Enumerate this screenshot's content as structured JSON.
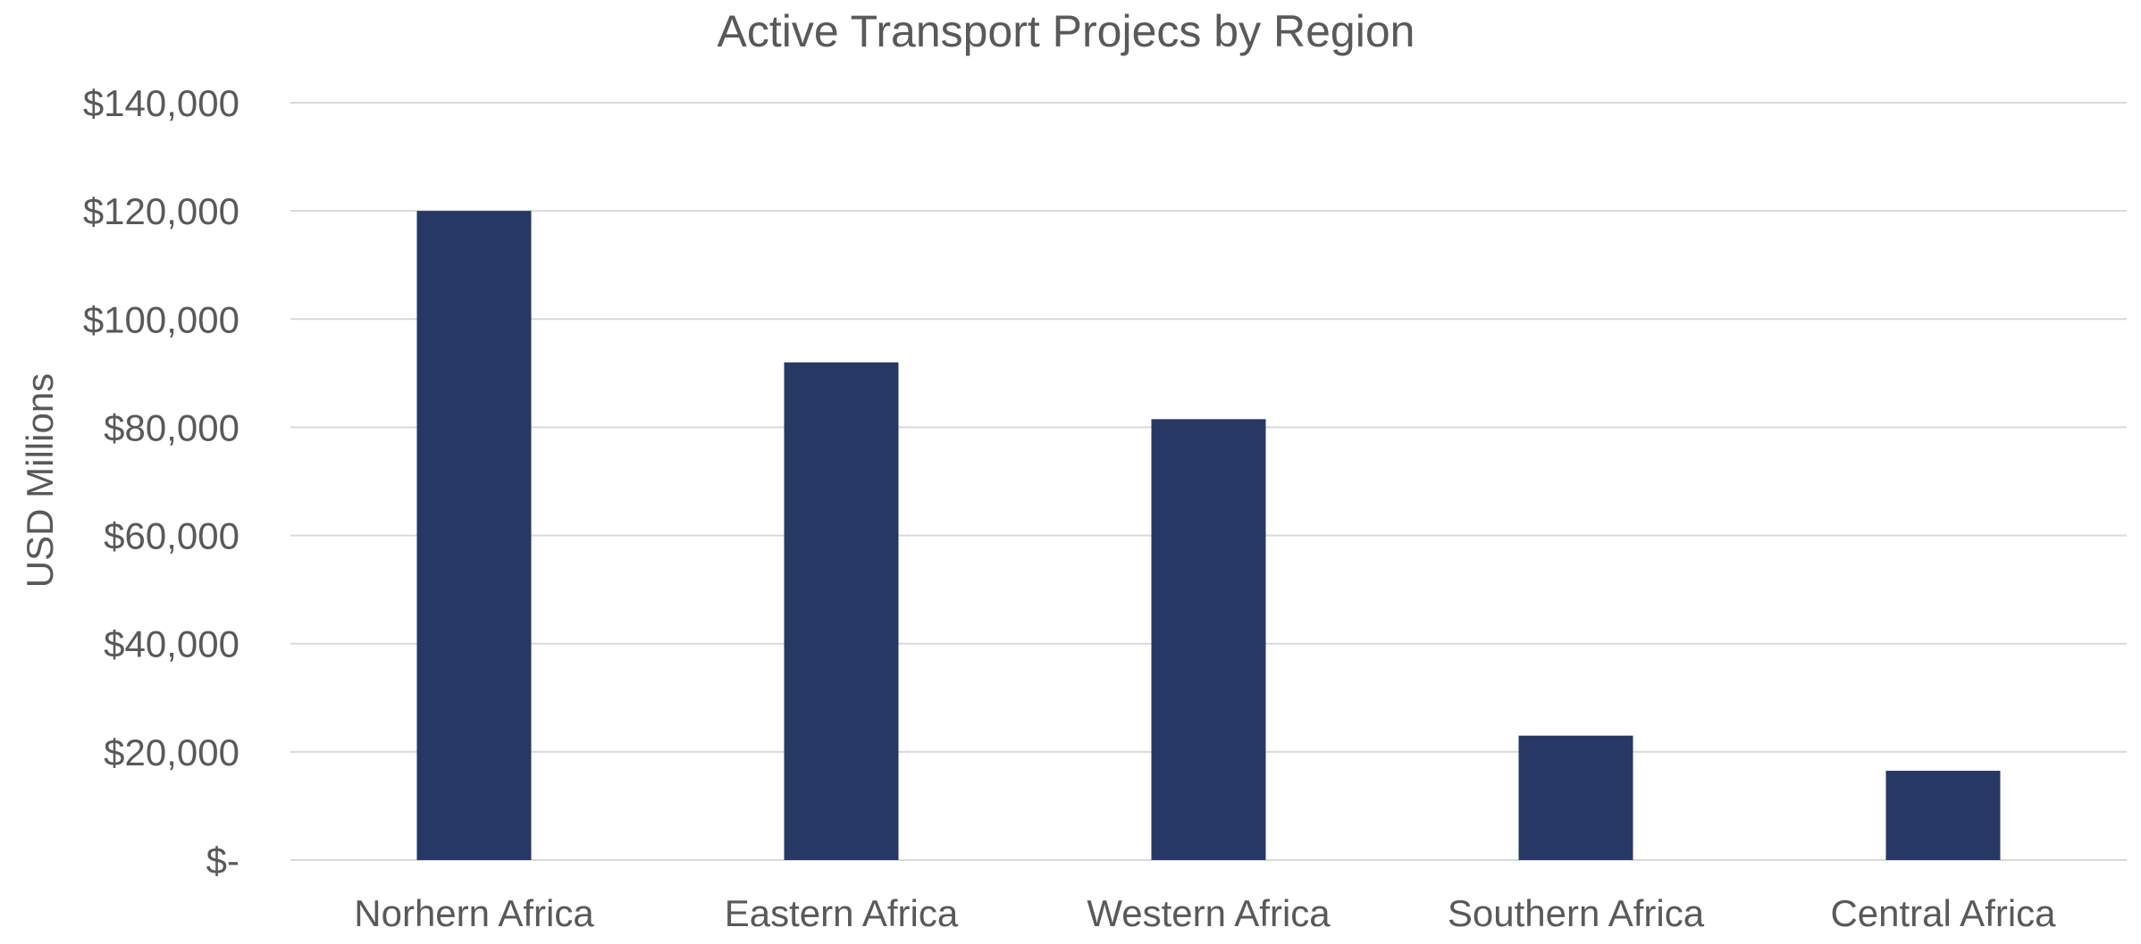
{
  "chart_data": {
    "type": "bar",
    "title": "Active Transport Projecs by Region",
    "xlabel": "",
    "ylabel": "USD Millions",
    "categories": [
      "Norhern Africa",
      "Eastern Africa",
      "Western Africa",
      "Southern Africa",
      "Central Africa"
    ],
    "values": [
      120000,
      92000,
      81500,
      23000,
      16500
    ],
    "ylim": [
      0,
      140000
    ],
    "yticks": [
      0,
      20000,
      40000,
      60000,
      80000,
      100000,
      120000,
      140000
    ],
    "ytick_labels": [
      "$-",
      "$20,000",
      "$40,000",
      "$60,000",
      "$80,000",
      "$100,000",
      "$120,000",
      "$140,000"
    ],
    "grid": true,
    "legend": "none",
    "colors": {
      "bar": "#283864",
      "grid": "#d9d9d9",
      "text": "#595959"
    }
  }
}
